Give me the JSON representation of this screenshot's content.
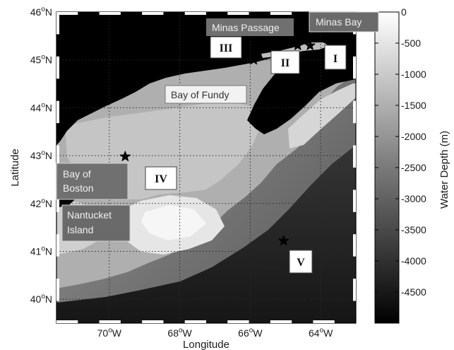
{
  "figure": {
    "xlabel": "Longitude",
    "ylabel": "Latitude",
    "lon_range": [
      -71.5,
      -63.0
    ],
    "lat_range": [
      39.5,
      46.0
    ],
    "x_ticks": [
      {
        "value": -70,
        "label": "70",
        "suffix": "W"
      },
      {
        "value": -68,
        "label": "68",
        "suffix": "W"
      },
      {
        "value": -66,
        "label": "66",
        "suffix": "W"
      },
      {
        "value": -64,
        "label": "64",
        "suffix": "W"
      }
    ],
    "y_ticks": [
      {
        "value": 46,
        "label": "46",
        "suffix": "N"
      },
      {
        "value": 45,
        "label": "45",
        "suffix": "N"
      },
      {
        "value": 44,
        "label": "44",
        "suffix": "N"
      },
      {
        "value": 43,
        "label": "43",
        "suffix": "N"
      },
      {
        "value": 42,
        "label": "42",
        "suffix": "N"
      },
      {
        "value": 41,
        "label": "41",
        "suffix": "N"
      },
      {
        "value": 40,
        "label": "40",
        "suffix": "N"
      }
    ],
    "degree_symbol": "o",
    "grid": "dotted",
    "colorbar": {
      "title": "Water Depth (m)",
      "range": [
        -5000,
        0
      ],
      "ticks": [
        {
          "value": 0,
          "label": "0"
        },
        {
          "value": -500,
          "label": "-500"
        },
        {
          "value": -1000,
          "label": "-1000"
        },
        {
          "value": -1500,
          "label": "-1500"
        },
        {
          "value": -2000,
          "label": "-2000"
        },
        {
          "value": -2500,
          "label": "-2500"
        },
        {
          "value": -3000,
          "label": "-3000"
        },
        {
          "value": -3500,
          "label": "-3500"
        },
        {
          "value": -4000,
          "label": "-4000"
        },
        {
          "value": -4500,
          "label": "-4500"
        }
      ],
      "colormap": "gray"
    }
  },
  "place_labels": [
    {
      "id": "minas-passage",
      "text": "Minas Passage"
    },
    {
      "id": "minas-bay",
      "text": "Minas Bay"
    },
    {
      "id": "bay-of-fundy",
      "text": "Bay of Fundy"
    },
    {
      "id": "bay-of-boston",
      "lines": [
        "Bay of",
        "Boston"
      ]
    },
    {
      "id": "nantucket-island",
      "lines": [
        "Nantucket",
        "Island"
      ]
    }
  ],
  "stations": [
    {
      "id": "I",
      "label": "I",
      "lon": -64.3,
      "lat": 45.3
    },
    {
      "id": "II",
      "label": "II",
      "lon": -64.65,
      "lat": 45.3
    },
    {
      "id": "III",
      "label": "III",
      "lon": -65.9,
      "lat": 45.0
    },
    {
      "id": "IV",
      "label": "IV",
      "lon": -69.55,
      "lat": 42.98
    },
    {
      "id": "V",
      "label": "V",
      "lon": -65.05,
      "lat": 41.22
    }
  ],
  "colors": {
    "land": "#000000",
    "shelf_shallow": "#c3c3c3",
    "shelf_mid": "#afafaf",
    "deep_ocean": "#262626",
    "label_box_dark": "#707070",
    "label_box_light": "#f2f2f2"
  }
}
